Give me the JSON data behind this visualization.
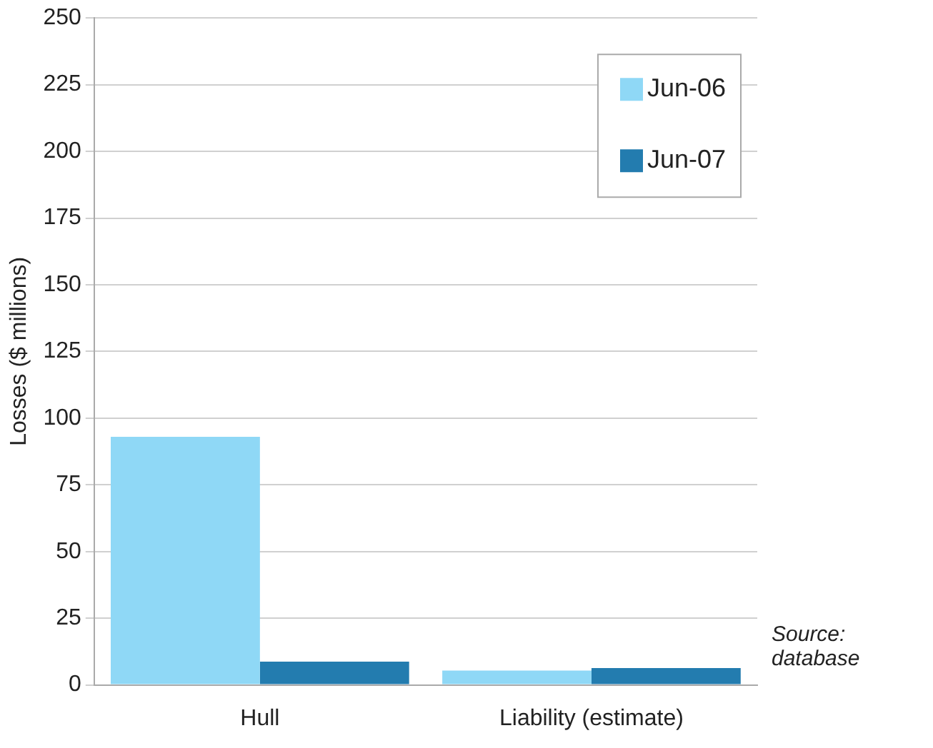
{
  "chart_data": {
    "type": "bar",
    "ylabel": "Losses ($ millions)",
    "categories": [
      "Hull",
      "Liability (estimate)"
    ],
    "series": [
      {
        "name": "Jun-06",
        "color": "#8fd8f6",
        "values": [
          93,
          5.4
        ]
      },
      {
        "name": "Jun-07",
        "color": "#237caf",
        "values": [
          8.7,
          6.3
        ]
      }
    ],
    "ylim": [
      0,
      250
    ],
    "yticks": [
      0,
      25,
      50,
      75,
      100,
      125,
      150,
      175,
      200,
      225,
      250
    ],
    "grid": "y",
    "legend": "top right",
    "annotations": [
      "Source: database"
    ]
  }
}
